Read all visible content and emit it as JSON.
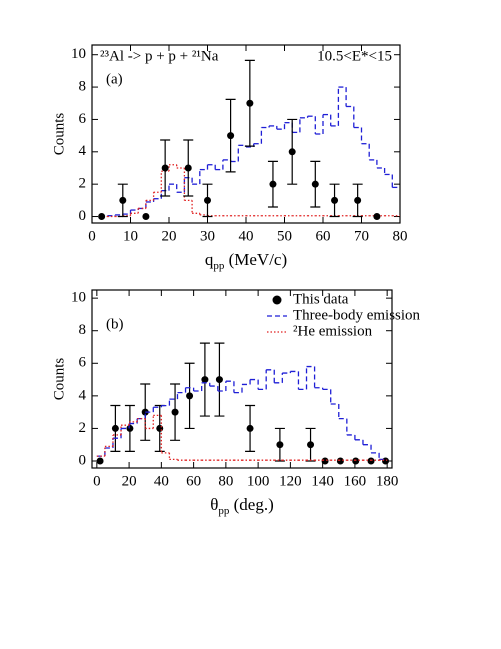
{
  "chart_data": [
    {
      "type": "scatter",
      "panel_label": "(a)",
      "annotations": [
        "²³Al -> p + p + ²¹Na",
        "10.5<E*<15"
      ],
      "xlabel": [
        "q",
        "pp",
        " (MeV/c)"
      ],
      "ylabel": "Counts",
      "xlim": [
        0,
        80
      ],
      "ylim": [
        -0.4,
        10.6
      ],
      "xticks": [
        0,
        10,
        20,
        30,
        40,
        50,
        60,
        70,
        80
      ],
      "yticks": [
        0,
        2,
        4,
        6,
        8,
        10
      ],
      "series": [
        {
          "type": "step",
          "color": "#1f1fd6",
          "style": "dashed",
          "bins": [
            2,
            4,
            6,
            8,
            10,
            12,
            14,
            16,
            18,
            20,
            22,
            24,
            26,
            28,
            30,
            32,
            34,
            36,
            38,
            40,
            42,
            44,
            46,
            48,
            50,
            52,
            54,
            56,
            58,
            60,
            62,
            64,
            66,
            68,
            70,
            72,
            74,
            76,
            78,
            80
          ],
          "values": [
            0.05,
            0.05,
            0.1,
            0.15,
            0.4,
            0.5,
            0.9,
            1.1,
            1.6,
            2.0,
            1.5,
            2.4,
            2.0,
            2.9,
            3.2,
            2.9,
            3.5,
            3.4,
            4.4,
            4.3,
            4.5,
            5.5,
            5.6,
            5.4,
            5.8,
            5.2,
            6.1,
            6.2,
            5.1,
            6.3,
            5.6,
            8.0,
            6.8,
            5.5,
            4.5,
            3.5,
            3.0,
            2.6,
            1.8
          ]
        },
        {
          "type": "step",
          "color": "#e02020",
          "style": "dotted",
          "bins": [
            2,
            4,
            6,
            8,
            10,
            12,
            14,
            16,
            18,
            20,
            22,
            24,
            26,
            28,
            30,
            32,
            34,
            36,
            38,
            40,
            42,
            44,
            46,
            48,
            50,
            52,
            54,
            56,
            58,
            60,
            62,
            64,
            66,
            68,
            70,
            72,
            74,
            76,
            78,
            80
          ],
          "values": [
            0,
            0,
            0,
            0.05,
            0.2,
            0.5,
            1.0,
            1.5,
            2.8,
            3.2,
            3.0,
            1.0,
            0.2,
            0.1,
            0.05,
            0.05,
            0.05,
            0.05,
            0.05,
            0.05,
            0.05,
            0.05,
            0.05,
            0.05,
            0.05,
            0.05,
            0.05,
            0.05,
            0.05,
            0.05,
            0.05,
            0.05,
            0.05,
            0.05,
            0.05,
            0.05,
            0.05,
            0.05,
            0.05
          ]
        },
        {
          "type": "errorbar",
          "color": "#000000",
          "x": [
            2.5,
            8,
            14,
            19,
            25,
            30,
            36,
            41,
            47,
            52,
            58,
            63,
            69,
            74
          ],
          "values": [
            0,
            1,
            0,
            3,
            3,
            1,
            5,
            7,
            2,
            4,
            2,
            1,
            1,
            0
          ],
          "errors": [
            0,
            1,
            0,
            1.73,
            1.73,
            1,
            2.24,
            2.65,
            1.41,
            2,
            1.41,
            1,
            1,
            0
          ]
        }
      ]
    },
    {
      "type": "scatter",
      "panel_label": "(b)",
      "legend": "upper right",
      "xlabel": [
        "θ",
        "pp",
        " (deg.)"
      ],
      "ylabel": "Counts",
      "xlim": [
        -3,
        183
      ],
      "ylim": [
        -0.43,
        10.5
      ],
      "xticks": [
        0,
        20,
        40,
        60,
        80,
        100,
        120,
        140,
        160,
        180
      ],
      "yticks": [
        0,
        2,
        4,
        6,
        8,
        10
      ],
      "series": [
        {
          "type": "errorbar",
          "name": "This data",
          "color": "#000000",
          "x": [
            2,
            11.5,
            20.5,
            30,
            39,
            48.5,
            57.5,
            67,
            76,
            95,
            113.5,
            132.5,
            141.5,
            151,
            160.5,
            170,
            179
          ],
          "values": [
            0,
            2,
            2,
            3,
            2,
            3,
            4,
            5,
            5,
            2,
            1,
            1,
            0,
            0,
            0,
            0,
            0
          ],
          "errors": [
            0,
            1.41,
            1.41,
            1.73,
            1.41,
            1.73,
            2,
            2.24,
            2.24,
            1.41,
            1,
            1,
            0,
            0,
            0,
            0,
            0
          ]
        },
        {
          "type": "step",
          "name": "Three-body emission",
          "color": "#1f1fd6",
          "style": "dashed",
          "bins": [
            0,
            5,
            10,
            15,
            20,
            25,
            30,
            35,
            40,
            45,
            50,
            55,
            60,
            65,
            70,
            75,
            80,
            85,
            90,
            95,
            100,
            105,
            110,
            115,
            120,
            125,
            130,
            135,
            140,
            145,
            150,
            155,
            160,
            165,
            170,
            175,
            180
          ],
          "values": [
            0.3,
            0.8,
            1.4,
            2.0,
            2.3,
            2.6,
            3.0,
            3.3,
            3.4,
            3.8,
            4.2,
            4.5,
            4.3,
            4.8,
            4.6,
            4.3,
            4.9,
            4.2,
            4.7,
            5.0,
            4.4,
            5.6,
            4.8,
            5.4,
            5.5,
            4.4,
            5.8,
            4.5,
            4.4,
            3.5,
            2.6,
            1.6,
            1.3,
            1.0,
            0.5,
            0.1
          ]
        },
        {
          "type": "step",
          "name": "²He emission",
          "color": "#e02020",
          "style": "dotted",
          "bins": [
            0,
            5,
            10,
            15,
            20,
            25,
            30,
            35,
            40,
            45,
            50,
            55,
            60,
            65,
            70,
            75,
            80,
            85,
            90,
            95,
            100,
            105,
            110,
            115,
            120,
            125,
            130,
            135,
            140,
            145,
            150,
            155,
            160,
            165,
            170,
            175,
            180
          ],
          "values": [
            0.3,
            0.9,
            1.6,
            2.2,
            2.4,
            2.6,
            2.0,
            2.8,
            0.5,
            0.1,
            0.05,
            0.05,
            0.05,
            0.05,
            0.05,
            0.05,
            0.05,
            0.05,
            0.05,
            0.05,
            0.05,
            0.05,
            0.05,
            0.05,
            0.05,
            0.05,
            0.05,
            0.05,
            0.05,
            0.05,
            0.05,
            0.05,
            0.05,
            0.05,
            0.05,
            0.05
          ]
        }
      ]
    }
  ]
}
